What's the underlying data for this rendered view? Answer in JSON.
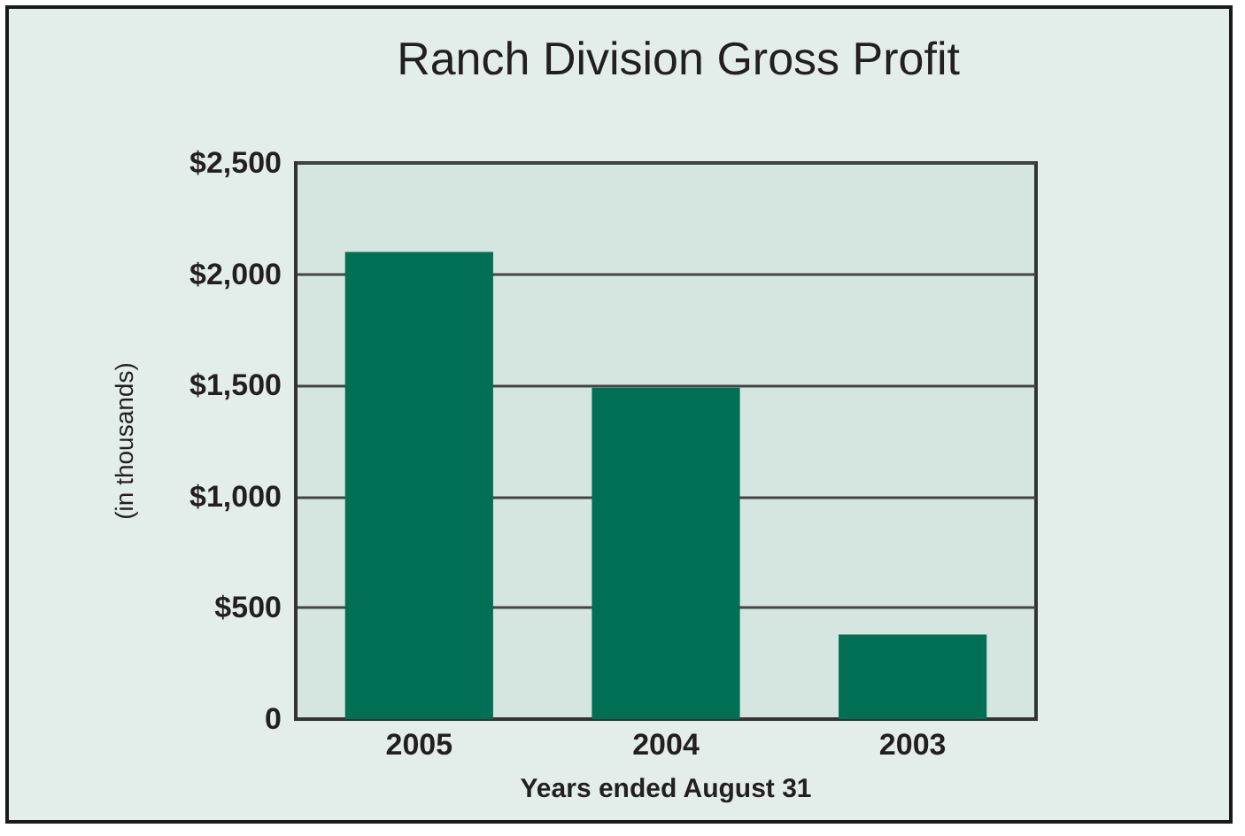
{
  "chart_data": {
    "type": "bar",
    "title": "Ranch Division Gross Profit",
    "xlabel": "Years ended August 31",
    "ylabel": "(in thousands)",
    "categories": [
      "2005",
      "2004",
      "2003"
    ],
    "values": [
      2100,
      1490,
      380
    ],
    "color": "#006f53",
    "ylim": [
      0,
      2500
    ],
    "yticks": [
      {
        "value": 0,
        "label": "0"
      },
      {
        "value": 500,
        "label": "$500"
      },
      {
        "value": 1000,
        "label": "$1,000"
      },
      {
        "value": 1500,
        "label": "$1,500"
      },
      {
        "value": 2000,
        "label": "$2,000"
      },
      {
        "value": 2500,
        "label": "$2,500"
      }
    ],
    "grid": "y"
  }
}
